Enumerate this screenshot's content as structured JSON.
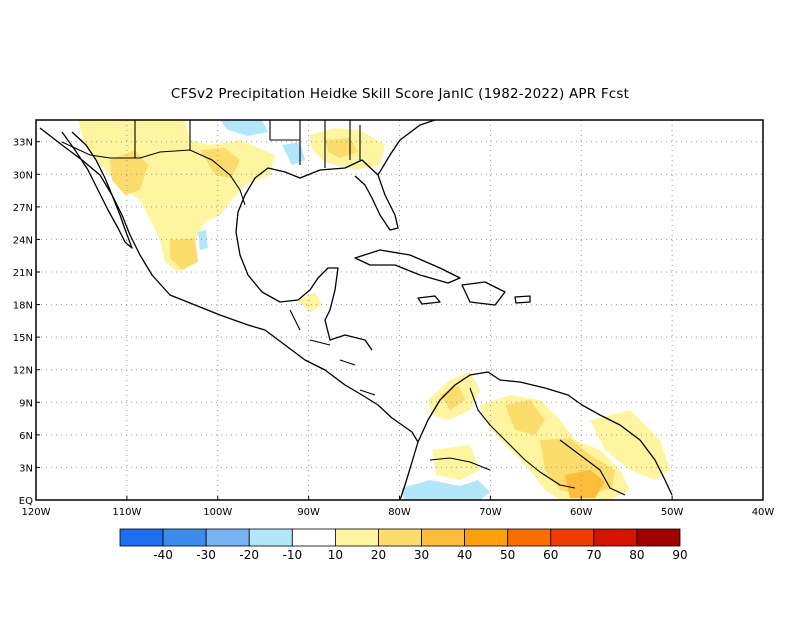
{
  "title": "CFSv2  Precipitation Heidke Skill Score JanIC (1982-2022) APR Fcst",
  "map": {
    "lat_labels": [
      "33N",
      "30N",
      "27N",
      "24N",
      "21N",
      "18N",
      "15N",
      "12N",
      "9N",
      "6N",
      "3N",
      "EQ"
    ],
    "lat_values": [
      33,
      30,
      27,
      24,
      21,
      18,
      15,
      12,
      9,
      6,
      3,
      0
    ],
    "lon_labels": [
      "120W",
      "110W",
      "100W",
      "90W",
      "80W",
      "70W",
      "60W",
      "50W",
      "40W"
    ],
    "lon_values": [
      -120,
      -110,
      -100,
      -90,
      -80,
      -70,
      -60,
      -50,
      -40
    ],
    "lon_range": [
      -120,
      -40
    ],
    "lat_range": [
      0,
      35
    ],
    "grid": "dotted"
  },
  "colorbar": {
    "labels": [
      "-40",
      "-30",
      "-20",
      "-10",
      "10",
      "20",
      "30",
      "40",
      "50",
      "60",
      "70",
      "80",
      "90"
    ],
    "colors": [
      "#1e6ef0",
      "#3c8cf0",
      "#78b4f5",
      "#b4e6fa",
      "#ffffff",
      "#fff5a0",
      "#fddc6e",
      "#fdbc3c",
      "#fca00c",
      "#fb6e00",
      "#f03c00",
      "#d21400",
      "#a00000"
    ]
  }
}
